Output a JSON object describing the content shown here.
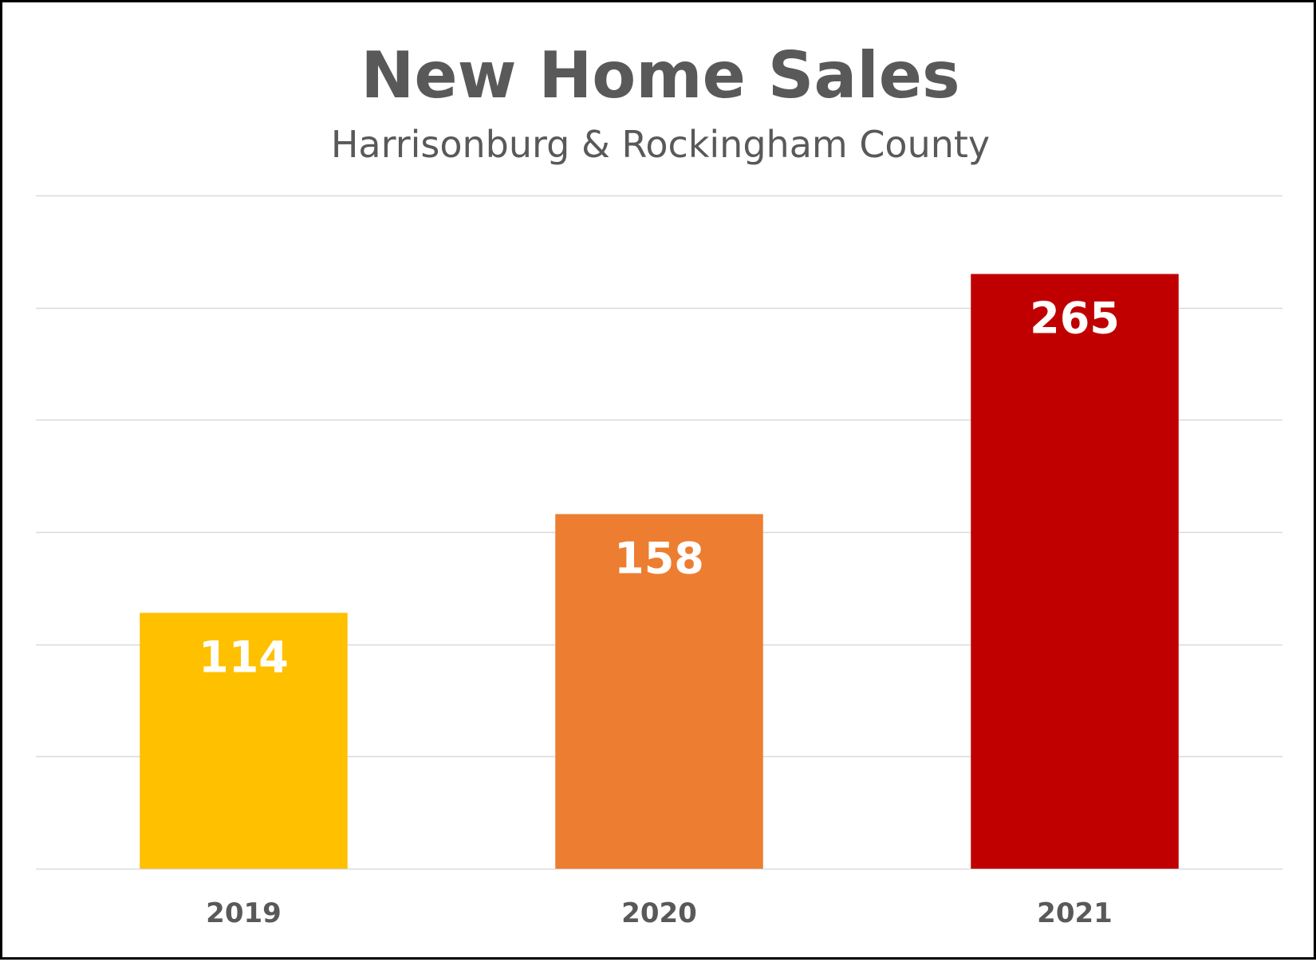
{
  "chart_data": {
    "type": "bar",
    "title": "New Home Sales",
    "subtitle": "Harrisonburg & Rockingham County",
    "categories": [
      "2019",
      "2020",
      "2021"
    ],
    "values": [
      114,
      158,
      265
    ],
    "colors": [
      "#FFC000",
      "#ED7D31",
      "#C00000"
    ],
    "ylim": [
      0,
      300
    ],
    "y_gridline_step": 50,
    "grid": true,
    "data_labels": true,
    "legend": "none",
    "xlabel": "",
    "ylabel": ""
  }
}
